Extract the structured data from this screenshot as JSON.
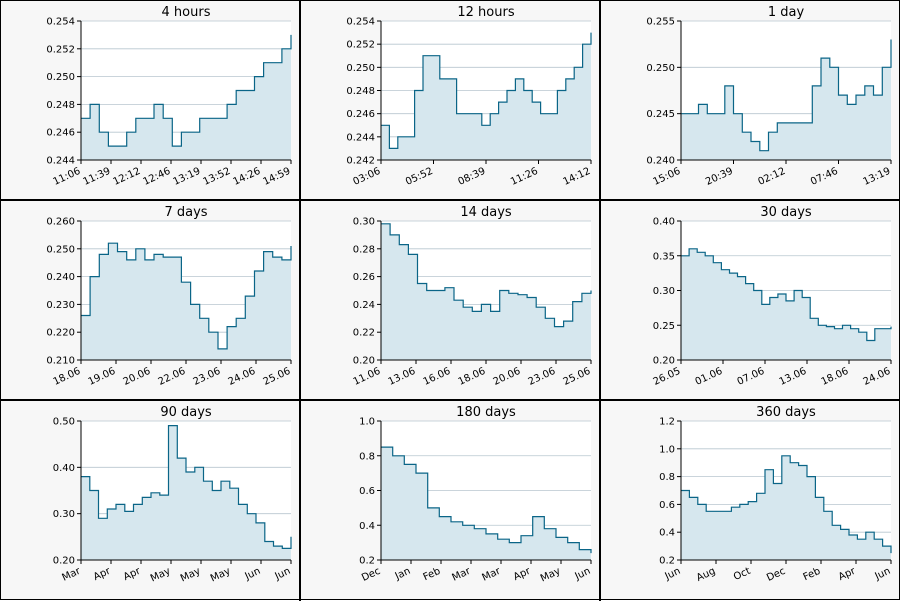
{
  "chart_data": [
    {
      "type": "area",
      "title": "4 hours",
      "xlabel": "",
      "ylabel": "",
      "ylim": [
        0.244,
        0.254
      ],
      "yticks": [
        "0.244",
        "0.246",
        "0.248",
        "0.250",
        "0.252",
        "0.254"
      ],
      "xticks": [
        "11:06",
        "11:39",
        "12:12",
        "12:46",
        "13:19",
        "13:52",
        "14:26",
        "14:59"
      ],
      "grid": "horizontal",
      "x": [
        "11:06",
        "11:15",
        "11:25",
        "11:39",
        "11:55",
        "12:12",
        "12:20",
        "12:35",
        "12:46",
        "12:55",
        "13:05",
        "13:15",
        "13:19",
        "13:30",
        "13:45",
        "13:52",
        "14:05",
        "14:18",
        "14:26",
        "14:40",
        "14:50",
        "14:59",
        "15:05",
        "15:10"
      ],
      "y": [
        0.247,
        0.248,
        0.246,
        0.245,
        0.245,
        0.246,
        0.247,
        0.247,
        0.248,
        0.247,
        0.245,
        0.246,
        0.246,
        0.247,
        0.247,
        0.247,
        0.248,
        0.249,
        0.249,
        0.25,
        0.251,
        0.251,
        0.252,
        0.253
      ]
    },
    {
      "type": "area",
      "title": "12 hours",
      "xlabel": "",
      "ylabel": "",
      "ylim": [
        0.242,
        0.254
      ],
      "yticks": [
        "0.242",
        "0.244",
        "0.246",
        "0.248",
        "0.250",
        "0.252",
        "0.254"
      ],
      "xticks": [
        "03:06",
        "05:52",
        "08:39",
        "11:26",
        "14:12"
      ],
      "grid": "horizontal",
      "x": [
        "03:06",
        "03:40",
        "04:20",
        "05:00",
        "05:30",
        "05:52",
        "06:20",
        "06:50",
        "07:20",
        "07:50",
        "08:20",
        "08:39",
        "09:10",
        "09:40",
        "10:10",
        "10:40",
        "11:10",
        "11:26",
        "11:55",
        "12:30",
        "13:00",
        "13:30",
        "14:00",
        "14:12",
        "14:40",
        "15:00"
      ],
      "y": [
        0.245,
        0.243,
        0.244,
        0.244,
        0.248,
        0.251,
        0.251,
        0.249,
        0.249,
        0.246,
        0.246,
        0.246,
        0.245,
        0.246,
        0.247,
        0.248,
        0.249,
        0.248,
        0.247,
        0.246,
        0.246,
        0.248,
        0.249,
        0.25,
        0.252,
        0.253
      ]
    },
    {
      "type": "area",
      "title": "1 day",
      "xlabel": "",
      "ylabel": "",
      "ylim": [
        0.24,
        0.255
      ],
      "yticks": [
        "0.240",
        "0.245",
        "0.250",
        "0.255"
      ],
      "xticks": [
        "15:06",
        "20:39",
        "02:12",
        "07:46",
        "13:19"
      ],
      "grid": "horizontal",
      "x": [
        "15:06",
        "16:30",
        "18:00",
        "19:20",
        "20:39",
        "21:40",
        "22:40",
        "23:40",
        "00:40",
        "01:30",
        "02:12",
        "03:20",
        "04:30",
        "05:40",
        "06:30",
        "07:10",
        "07:46",
        "08:40",
        "09:40",
        "10:40",
        "11:40",
        "12:30",
        "13:19",
        "14:10",
        "14:50"
      ],
      "y": [
        0.245,
        0.245,
        0.246,
        0.245,
        0.245,
        0.248,
        0.245,
        0.243,
        0.242,
        0.241,
        0.243,
        0.244,
        0.244,
        0.244,
        0.244,
        0.248,
        0.251,
        0.25,
        0.247,
        0.246,
        0.247,
        0.248,
        0.247,
        0.25,
        0.253
      ]
    },
    {
      "type": "area",
      "title": "7 days",
      "xlabel": "",
      "ylabel": "",
      "ylim": [
        0.21,
        0.26
      ],
      "yticks": [
        "0.210",
        "0.220",
        "0.230",
        "0.240",
        "0.250",
        "0.260"
      ],
      "xticks": [
        "18.06",
        "19.06",
        "20.06",
        "22.06",
        "23.06",
        "24.06",
        "25.06"
      ],
      "grid": "horizontal",
      "x": [
        "18.06 00h",
        "18.06 06h",
        "18.06 12h",
        "18.06 18h",
        "19.06 00h",
        "19.06 08h",
        "19.06 16h",
        "20.06 00h",
        "20.06 08h",
        "20.06 16h",
        "22.06 00h",
        "22.06 08h",
        "22.06 16h",
        "23.06 00h",
        "23.06 06h",
        "23.06 12h",
        "23.06 18h",
        "24.06 00h",
        "24.06 06h",
        "24.06 12h",
        "24.06 18h",
        "25.06 00h",
        "25.06 08h",
        "25.06 16h"
      ],
      "y": [
        0.226,
        0.24,
        0.248,
        0.252,
        0.249,
        0.246,
        0.25,
        0.246,
        0.248,
        0.247,
        0.247,
        0.238,
        0.23,
        0.225,
        0.22,
        0.214,
        0.222,
        0.225,
        0.233,
        0.242,
        0.249,
        0.247,
        0.246,
        0.251
      ]
    },
    {
      "type": "area",
      "title": "14 days",
      "xlabel": "",
      "ylabel": "",
      "ylim": [
        0.2,
        0.3
      ],
      "yticks": [
        "0.20",
        "0.22",
        "0.24",
        "0.26",
        "0.28",
        "0.30"
      ],
      "xticks": [
        "11.06",
        "13.06",
        "16.06",
        "18.06",
        "20.06",
        "23.06",
        "25.06"
      ],
      "grid": "horizontal",
      "x": [
        "11.06",
        "11.06 12h",
        "12.06",
        "12.06 12h",
        "13.06",
        "14.06",
        "15.06",
        "16.06",
        "16.06 12h",
        "17.06",
        "17.06 12h",
        "18.06",
        "18.06 12h",
        "19.06",
        "20.06",
        "21.06",
        "22.06",
        "22.06 12h",
        "23.06",
        "23.06 12h",
        "24.06",
        "24.06 12h",
        "25.06",
        "25.06 12h"
      ],
      "y": [
        0.298,
        0.29,
        0.283,
        0.276,
        0.255,
        0.25,
        0.25,
        0.252,
        0.243,
        0.238,
        0.235,
        0.24,
        0.235,
        0.25,
        0.248,
        0.247,
        0.245,
        0.238,
        0.23,
        0.224,
        0.228,
        0.242,
        0.248,
        0.25
      ]
    },
    {
      "type": "area",
      "title": "30 days",
      "xlabel": "",
      "ylabel": "",
      "ylim": [
        0.2,
        0.4
      ],
      "yticks": [
        "0.20",
        "0.25",
        "0.30",
        "0.35",
        "0.40"
      ],
      "xticks": [
        "26.05",
        "01.06",
        "07.06",
        "13.06",
        "18.06",
        "24.06"
      ],
      "grid": "horizontal",
      "x": [
        "26.05",
        "27.05",
        "28.05",
        "29.05",
        "30.05",
        "01.06",
        "02.06",
        "04.06",
        "05.06",
        "06.06",
        "07.06",
        "08.06",
        "09.06",
        "10.06",
        "11.06",
        "12.06",
        "13.06",
        "14.06",
        "16.06",
        "17.06",
        "18.06",
        "19.06",
        "20.06",
        "22.06",
        "23.06",
        "24.06",
        "25.06"
      ],
      "y": [
        0.35,
        0.36,
        0.355,
        0.35,
        0.34,
        0.33,
        0.325,
        0.32,
        0.31,
        0.3,
        0.28,
        0.29,
        0.295,
        0.285,
        0.3,
        0.29,
        0.26,
        0.25,
        0.248,
        0.245,
        0.25,
        0.245,
        0.24,
        0.228,
        0.245,
        0.245,
        0.248
      ]
    },
    {
      "type": "area",
      "title": "90 days",
      "xlabel": "",
      "ylabel": "",
      "ylim": [
        0.2,
        0.5
      ],
      "yticks": [
        "0.20",
        "0.30",
        "0.40",
        "0.50"
      ],
      "xticks": [
        "Mar",
        "Apr",
        "Apr",
        "May",
        "May",
        "May",
        "Jun",
        "Jun"
      ],
      "grid": "horizontal",
      "x": [
        "27 Mar",
        "31 Mar",
        "4 Apr",
        "8 Apr",
        "12 Apr",
        "16 Apr",
        "20 Apr",
        "24 Apr",
        "28 Apr",
        "2 May",
        "3 May",
        "6 May",
        "10 May",
        "14 May",
        "18 May",
        "22 May",
        "26 May",
        "30 May",
        "3 Jun",
        "7 Jun",
        "11 Jun",
        "15 Jun",
        "19 Jun",
        "23 Jun",
        "25 Jun"
      ],
      "y": [
        0.38,
        0.35,
        0.29,
        0.31,
        0.32,
        0.305,
        0.32,
        0.335,
        0.345,
        0.34,
        0.49,
        0.42,
        0.39,
        0.4,
        0.37,
        0.35,
        0.37,
        0.355,
        0.32,
        0.3,
        0.28,
        0.24,
        0.23,
        0.225,
        0.25
      ]
    },
    {
      "type": "area",
      "title": "180 days",
      "xlabel": "",
      "ylabel": "",
      "ylim": [
        0.2,
        1.0
      ],
      "yticks": [
        "0.2",
        "0.4",
        "0.6",
        "0.8",
        "1.0"
      ],
      "xticks": [
        "Dec",
        "Jan",
        "Feb",
        "Mar",
        "Mar",
        "Apr",
        "May",
        "Jun"
      ],
      "grid": "horizontal",
      "x": [
        "27 Dec",
        "5 Jan",
        "15 Jan",
        "25 Jan",
        "5 Feb",
        "15 Feb",
        "25 Feb",
        "8 Mar",
        "18 Mar",
        "28 Mar",
        "7 Apr",
        "17 Apr",
        "27 Apr",
        "7 May",
        "17 May",
        "27 May",
        "6 Jun",
        "16 Jun",
        "25 Jun"
      ],
      "y": [
        0.85,
        0.8,
        0.75,
        0.7,
        0.5,
        0.45,
        0.42,
        0.4,
        0.38,
        0.35,
        0.32,
        0.3,
        0.34,
        0.45,
        0.38,
        0.33,
        0.3,
        0.26,
        0.24
      ]
    },
    {
      "type": "area",
      "title": "360 days",
      "xlabel": "",
      "ylabel": "",
      "ylim": [
        0.2,
        1.2
      ],
      "yticks": [
        "0.2",
        "0.4",
        "0.6",
        "0.8",
        "1.0",
        "1.2"
      ],
      "xticks": [
        "Jun",
        "Aug",
        "Oct",
        "Dec",
        "Feb",
        "Apr",
        "Jun"
      ],
      "grid": "horizontal",
      "x": [
        "Jun",
        "mid Jun",
        "Jul",
        "mid Jul",
        "Aug",
        "mid Aug",
        "Sep",
        "mid Sep",
        "Oct",
        "mid Oct",
        "Nov",
        "mid Nov",
        "Dec",
        "mid Dec",
        "Jan",
        "mid Jan",
        "Feb",
        "mid Feb",
        "Mar",
        "mid Mar",
        "Apr",
        "mid Apr",
        "May",
        "mid May",
        "Jun",
        "late Jun"
      ],
      "y": [
        0.7,
        0.65,
        0.6,
        0.55,
        0.55,
        0.55,
        0.58,
        0.6,
        0.62,
        0.68,
        0.85,
        0.75,
        0.95,
        0.9,
        0.88,
        0.8,
        0.65,
        0.55,
        0.45,
        0.42,
        0.38,
        0.35,
        0.4,
        0.35,
        0.3,
        0.25
      ]
    }
  ],
  "colors": {
    "line": "#0a6587",
    "fill": "#d6e7ee",
    "grid": "#b8c6cf",
    "panel_background": "#f7f7f7",
    "plot_background": "#ffffff",
    "border": "#000000"
  }
}
